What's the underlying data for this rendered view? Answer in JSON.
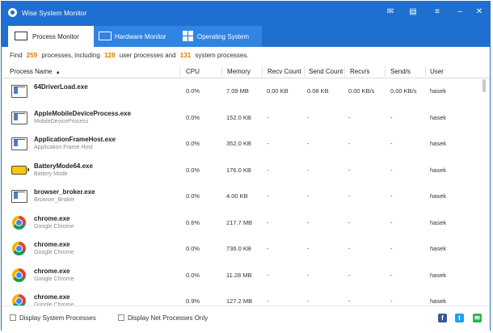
{
  "window": {
    "title": "Wise System Monitor"
  },
  "titlebar_buttons": [
    {
      "name": "email-icon",
      "glyph": "✉"
    },
    {
      "name": "feedback-icon",
      "glyph": "▤"
    },
    {
      "name": "menu-icon",
      "glyph": "≡"
    },
    {
      "name": "minimize-icon",
      "glyph": "–"
    },
    {
      "name": "close-icon",
      "glyph": "✕"
    }
  ],
  "tabs": [
    {
      "label": "Process Monitor",
      "active": true,
      "icon": "process-monitor-icon"
    },
    {
      "label": "Hardware Monitor",
      "active": false,
      "icon": "monitor-icon"
    },
    {
      "label": "Operating System",
      "active": false,
      "icon": "windows-icon"
    }
  ],
  "summary": {
    "prefix": "Find",
    "total": "259",
    "mid1": "processes, including",
    "user": "128",
    "mid2": "user processes and",
    "system": "131",
    "suffix": "system processes."
  },
  "columns": [
    "Process Name",
    "CPU",
    "Memory",
    "Recv Count",
    "Send Count",
    "Recv/s",
    "Send/s",
    "User"
  ],
  "sort_indicator": "▲",
  "processes": [
    {
      "name": "64DriverLoad.exe",
      "desc": "",
      "icon": "exe-icon",
      "cpu": "0.0%",
      "memory": "7.09 MB",
      "recv_count": "0.00 KB",
      "send_count": "0.08 KB",
      "recv_s": "0.00 KB/s",
      "send_s": "0.00 KB/s",
      "user": "hasek"
    },
    {
      "name": "AppleMobileDeviceProcess.exe",
      "desc": "MobileDeviceProcess",
      "icon": "exe-icon",
      "cpu": "0.0%",
      "memory": "152.0 KB",
      "recv_count": "-",
      "send_count": "-",
      "recv_s": "-",
      "send_s": "-",
      "user": "hasek"
    },
    {
      "name": "ApplicationFrameHost.exe",
      "desc": "Application Frame Host",
      "icon": "exe-icon",
      "cpu": "0.0%",
      "memory": "352.0 KB",
      "recv_count": "-",
      "send_count": "-",
      "recv_s": "-",
      "send_s": "-",
      "user": "hasek"
    },
    {
      "name": "BatteryMode64.exe",
      "desc": "Battery Mode",
      "icon": "battery-icon",
      "cpu": "0.0%",
      "memory": "176.0 KB",
      "recv_count": "-",
      "send_count": "-",
      "recv_s": "-",
      "send_s": "-",
      "user": "hasek"
    },
    {
      "name": "browser_broker.exe",
      "desc": "Browser_Broker",
      "icon": "exe-icon",
      "cpu": "0.0%",
      "memory": "4.00 KB",
      "recv_count": "-",
      "send_count": "-",
      "recv_s": "-",
      "send_s": "-",
      "user": "hasek"
    },
    {
      "name": "chrome.exe",
      "desc": "Google Chrome",
      "icon": "chrome-icon",
      "cpu": "0.6%",
      "memory": "217.7 MB",
      "recv_count": "-",
      "send_count": "-",
      "recv_s": "-",
      "send_s": "-",
      "user": "hasek"
    },
    {
      "name": "chrome.exe",
      "desc": "Google Chrome",
      "icon": "chrome-icon",
      "cpu": "0.0%",
      "memory": "736.0 KB",
      "recv_count": "-",
      "send_count": "-",
      "recv_s": "-",
      "send_s": "-",
      "user": "hasek"
    },
    {
      "name": "chrome.exe",
      "desc": "Google Chrome",
      "icon": "chrome-icon",
      "cpu": "0.0%",
      "memory": "11.28 MB",
      "recv_count": "-",
      "send_count": "-",
      "recv_s": "-",
      "send_s": "-",
      "user": "hasek"
    },
    {
      "name": "chrome.exe",
      "desc": "Google Chrome",
      "icon": "chrome-icon",
      "cpu": "0.9%",
      "memory": "127.2 MB",
      "recv_count": "-",
      "send_count": "-",
      "recv_s": "-",
      "send_s": "-",
      "user": "hasek"
    }
  ],
  "footer": {
    "display_system_processes": "Display System Processes",
    "display_net_processes_only": "Display Net Processes Only"
  },
  "social": [
    {
      "name": "facebook-icon",
      "glyph": "f",
      "color": "#3b5998"
    },
    {
      "name": "twitter-icon",
      "glyph": "t",
      "color": "#1da1f2"
    },
    {
      "name": "share-icon",
      "glyph": "✉",
      "color": "#2bb24c"
    }
  ],
  "colors": {
    "titlebar": "#1e6fd0",
    "highlight_number": "#e07b00"
  }
}
